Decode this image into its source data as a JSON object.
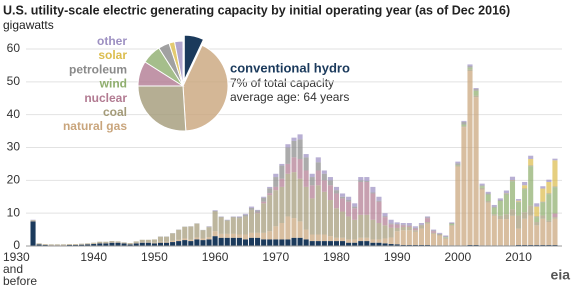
{
  "chart_data": {
    "type": "stacked_bar",
    "title": "U.S. utility-scale electric generating capacity by initial operating year (as of Dec 2016)",
    "y_label": "gigawatts",
    "annotations": [
      "7% of total capacity",
      "average age: 64 years"
    ],
    "source": "eia",
    "ylim": [
      0,
      60
    ],
    "yticks": [
      0,
      10,
      20,
      30,
      40,
      50,
      60
    ],
    "grid": true,
    "categories": [
      "1930 and before",
      null,
      null,
      null,
      null,
      null,
      null,
      null,
      null,
      null,
      "1940",
      null,
      null,
      null,
      null,
      null,
      null,
      null,
      null,
      null,
      "1950",
      null,
      null,
      null,
      null,
      null,
      null,
      null,
      null,
      null,
      "1960",
      null,
      null,
      null,
      null,
      null,
      null,
      null,
      null,
      null,
      "1970",
      null,
      null,
      null,
      null,
      null,
      null,
      null,
      null,
      null,
      "1980",
      null,
      null,
      null,
      null,
      null,
      null,
      null,
      null,
      null,
      "1990",
      null,
      null,
      null,
      null,
      null,
      null,
      null,
      null,
      null,
      "2000",
      null,
      null,
      null,
      null,
      null,
      null,
      null,
      null,
      null,
      "2010",
      null,
      null,
      null,
      null,
      null,
      null
    ],
    "series": [
      {
        "name": "conventional hydro",
        "color": "#1b3a5c",
        "share": 7,
        "values": [
          7.5,
          0.5,
          0.3,
          0.2,
          0.2,
          0.2,
          0.3,
          0.3,
          0.4,
          0.5,
          0.6,
          0.8,
          0.8,
          1,
          1,
          0.8,
          0.5,
          0.8,
          1,
          1,
          0.8,
          1,
          1,
          1.2,
          1.5,
          1.8,
          1.5,
          2,
          1.8,
          2,
          3,
          2.5,
          2.5,
          2.5,
          2.5,
          2,
          2.5,
          2.5,
          2,
          2,
          2,
          2,
          2,
          2.5,
          2.5,
          2,
          1.5,
          1.5,
          1.5,
          1.5,
          1.5,
          1.5,
          1,
          1,
          1.5,
          1.5,
          1,
          1,
          0.8,
          0.6,
          0.5,
          0.3,
          0.3,
          0.3,
          0.3,
          0.3,
          0.2,
          0.2,
          0.2,
          0.2,
          0.2,
          0.2,
          0.3,
          0.3,
          0.2,
          0.2,
          0.2,
          0.2,
          0.2,
          0.2,
          0.3,
          0.3,
          0.3,
          0.3,
          0.3,
          0.3,
          0.3
        ]
      },
      {
        "name": "natural gas",
        "color": "#c9a57c",
        "share": 42,
        "values": [
          0.1,
          0.1,
          0.1,
          0.1,
          0.1,
          0.1,
          0.1,
          0.1,
          0.1,
          0.1,
          0.1,
          0.1,
          0.1,
          0.1,
          0.1,
          0.1,
          0.1,
          0.1,
          0.1,
          0.1,
          0.2,
          0.3,
          0.3,
          0.4,
          0.4,
          0.5,
          0.4,
          0.6,
          0.5,
          0.7,
          1.5,
          1.2,
          1.2,
          1.2,
          1,
          1.5,
          1.5,
          1.5,
          2,
          2.5,
          4,
          5,
          7,
          6,
          5,
          3,
          2,
          2,
          2,
          1.5,
          1,
          1,
          1,
          1,
          1,
          1,
          1,
          1,
          1.5,
          2,
          4,
          4.5,
          4.5,
          4,
          5,
          6.5,
          3.5,
          3,
          2,
          6,
          24,
          36,
          53,
          45,
          17,
          13,
          9,
          8,
          8,
          9,
          5,
          8,
          9,
          6,
          8,
          7,
          8
        ]
      },
      {
        "name": "coal",
        "color": "#a39a78",
        "share": 26,
        "values": [
          0.2,
          0.2,
          0.2,
          0.2,
          0.2,
          0.2,
          0.2,
          0.2,
          0.2,
          0.2,
          0.3,
          0.4,
          0.4,
          0.4,
          0.3,
          0.2,
          0.3,
          0.5,
          0.8,
          0.8,
          1,
          1.5,
          1.5,
          2.2,
          3,
          3.5,
          4,
          4.2,
          2.5,
          3,
          6,
          5,
          4,
          5,
          5,
          5.5,
          7,
          6,
          9,
          11,
          11,
          11,
          13,
          14,
          13,
          13,
          11,
          15,
          13,
          11,
          9,
          8,
          7,
          6,
          7,
          7,
          6,
          5,
          4,
          3,
          1,
          1,
          1,
          0.5,
          1,
          0.5,
          0.3,
          0.3,
          0.3,
          0.2,
          0.3,
          0.3,
          0.5,
          0.5,
          0.5,
          0.5,
          0.5,
          1,
          1.5,
          2,
          4,
          2,
          3,
          1,
          1,
          0.5,
          0.5
        ]
      },
      {
        "name": "nuclear",
        "color": "#b27b92",
        "share": 9,
        "values": [
          0,
          0,
          0,
          0,
          0,
          0,
          0,
          0,
          0,
          0,
          0,
          0,
          0,
          0,
          0,
          0,
          0,
          0,
          0,
          0,
          0,
          0,
          0,
          0,
          0,
          0,
          0,
          0,
          0,
          0,
          0,
          0,
          0,
          0,
          0,
          0,
          0,
          0.2,
          0.5,
          0.6,
          1,
          2.5,
          3,
          4.5,
          6,
          5,
          4,
          4.5,
          3.5,
          4.5,
          4.5,
          4,
          4.5,
          3.5,
          10,
          10,
          8,
          6.5,
          2.5,
          1,
          1,
          0.5,
          0.3,
          0.5,
          0,
          1.2,
          0.5,
          0,
          0,
          0,
          0,
          0,
          0,
          0,
          0,
          0,
          0,
          0,
          0,
          0,
          0,
          0,
          0,
          0,
          0,
          0,
          1.1
        ]
      },
      {
        "name": "wind",
        "color": "#8fae6e",
        "share": 7,
        "values": [
          0,
          0,
          0,
          0,
          0,
          0,
          0,
          0,
          0,
          0,
          0,
          0,
          0,
          0,
          0,
          0,
          0,
          0,
          0,
          0,
          0,
          0,
          0,
          0,
          0,
          0,
          0,
          0,
          0,
          0,
          0,
          0,
          0,
          0,
          0,
          0,
          0,
          0,
          0,
          0,
          0,
          0,
          0,
          0,
          0,
          0,
          0,
          0,
          0,
          0,
          0,
          0,
          0,
          0,
          0,
          0,
          0,
          0,
          0,
          0,
          0,
          0,
          0,
          0,
          0,
          0,
          0,
          0,
          0.2,
          0.3,
          0.2,
          0.5,
          0.5,
          1.5,
          0.5,
          2,
          2,
          4.5,
          6,
          8.5,
          4,
          7,
          12,
          1.5,
          4,
          8,
          8
        ]
      },
      {
        "name": "petroleum",
        "color": "#8a8a8a",
        "share": 4,
        "values": [
          0.1,
          0,
          0,
          0,
          0,
          0,
          0,
          0,
          0,
          0,
          0,
          0,
          0,
          0,
          0,
          0,
          0,
          0,
          0,
          0,
          0,
          0.1,
          0.1,
          0.1,
          0.1,
          0.1,
          0.1,
          0.1,
          0.1,
          0.2,
          0.2,
          0.2,
          0.2,
          0.2,
          0.3,
          0.5,
          0.6,
          0.6,
          1.2,
          1.5,
          3,
          4,
          5,
          5,
          6,
          4,
          2.5,
          2.5,
          2,
          1.5,
          1,
          0.5,
          0.5,
          0.5,
          0.5,
          0.3,
          0.3,
          0.3,
          0.3,
          0.3,
          0.2,
          0.2,
          0.2,
          0.2,
          0.2,
          0.2,
          0.2,
          0.2,
          0.2,
          0.3,
          0.5,
          0.8,
          0.5,
          0.5,
          0.3,
          0.3,
          0.3,
          0.3,
          0.3,
          0.3,
          0.2,
          0.2,
          0.2,
          0.2,
          0.2,
          0.2,
          0.2
        ]
      },
      {
        "name": "solar",
        "color": "#dcbd4e",
        "share": 2,
        "values": [
          0,
          0,
          0,
          0,
          0,
          0,
          0,
          0,
          0,
          0,
          0,
          0,
          0,
          0,
          0,
          0,
          0,
          0,
          0,
          0,
          0,
          0,
          0,
          0,
          0,
          0,
          0,
          0,
          0,
          0,
          0,
          0,
          0,
          0,
          0,
          0,
          0,
          0,
          0,
          0,
          0,
          0,
          0,
          0,
          0,
          0,
          0,
          0,
          0,
          0,
          0,
          0,
          0,
          0,
          0,
          0,
          0,
          0,
          0,
          0,
          0,
          0,
          0,
          0,
          0,
          0,
          0,
          0,
          0,
          0,
          0,
          0,
          0,
          0,
          0,
          0,
          0,
          0,
          0.1,
          0.1,
          0.3,
          1,
          2,
          3,
          4,
          3.5,
          8
        ]
      },
      {
        "name": "other",
        "color": "#9d90c2",
        "share": 3,
        "values": [
          0.1,
          0,
          0,
          0,
          0,
          0,
          0,
          0,
          0,
          0,
          0,
          0,
          0,
          0,
          0,
          0,
          0,
          0,
          0,
          0,
          0,
          0,
          0,
          0,
          0,
          0,
          0,
          0,
          0,
          0.1,
          0.2,
          0.1,
          0.1,
          0.1,
          0.2,
          0.3,
          0.4,
          0.2,
          0.3,
          0.4,
          1,
          0.5,
          1,
          1,
          1.5,
          1,
          1,
          1.5,
          1,
          1,
          1,
          1,
          1,
          1,
          1,
          1.2,
          1.7,
          1.2,
          0.9,
          1.1,
          0.5,
          0.5,
          0.7,
          0.5,
          0.5,
          0.3,
          0.3,
          0.3,
          0.3,
          0.2,
          0.5,
          0.3,
          0.5,
          0.3,
          0.5,
          0.5,
          0.5,
          0.5,
          0.8,
          1,
          0.5,
          1,
          1,
          1,
          0.7,
          0.7,
          0.5
        ]
      }
    ]
  }
}
